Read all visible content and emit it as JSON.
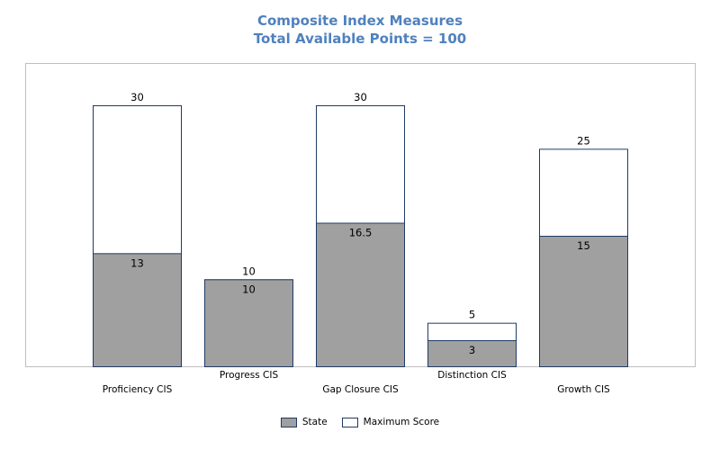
{
  "chart_data": {
    "type": "bar",
    "title": "Composite Index Measures",
    "subtitle": "Total Available Points = 100",
    "categories": [
      "Proficiency CIS",
      "Progress CIS",
      "Gap Closure CIS",
      "Distinction CIS",
      "Growth CIS"
    ],
    "series": [
      {
        "name": "State",
        "values": [
          13,
          10,
          16.5,
          3,
          15
        ]
      },
      {
        "name": "Maximum Score",
        "values": [
          30,
          10,
          30,
          5,
          25
        ]
      }
    ],
    "ylim": [
      0,
      30
    ],
    "grid": false,
    "legend": "bottom",
    "colors": {
      "state_fill": "#a0a0a0",
      "max_fill": "#ffffff",
      "bar_border": "#1f3b66",
      "plot_border": "#bfbfbf",
      "title": "#4f81bd"
    }
  }
}
